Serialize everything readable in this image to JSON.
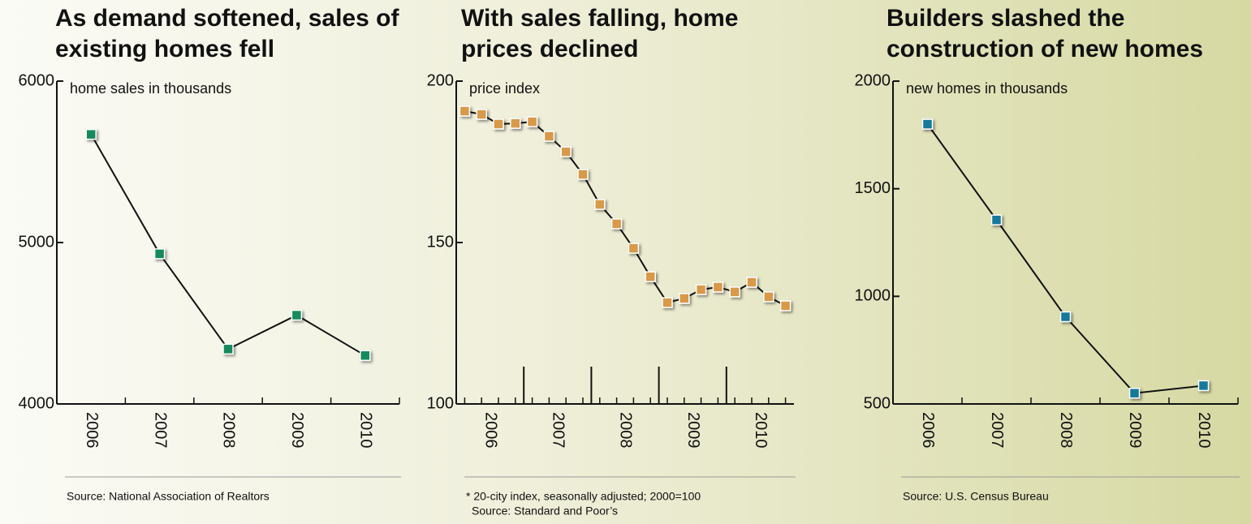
{
  "chart_data": [
    {
      "type": "line",
      "title": "As demand softened, sales of existing homes fell",
      "annotation": "home sales in thousands",
      "categories": [
        "2006",
        "2007",
        "2008",
        "2009",
        "2010"
      ],
      "series": [
        {
          "name": "home sales",
          "color": "#168a5c",
          "values": [
            5670,
            4930,
            4340,
            4550,
            4300
          ]
        }
      ],
      "ylim": [
        4000,
        6000
      ],
      "yticks": [
        4000,
        5000,
        6000
      ],
      "notes": [
        "Source: National Association of Realtors"
      ]
    },
    {
      "type": "line",
      "title": "With sales falling, home prices declined",
      "annotation": "price index",
      "x": [
        2006.125,
        2006.375,
        2006.625,
        2006.875,
        2007.125,
        2007.375,
        2007.625,
        2007.875,
        2008.125,
        2008.375,
        2008.625,
        2008.875,
        2009.125,
        2009.375,
        2009.625,
        2009.875,
        2010.125,
        2010.375,
        2010.625,
        2010.875
      ],
      "series": [
        {
          "name": "price index",
          "color": "#d8994a",
          "values": [
            190.7,
            189.7,
            186.7,
            186.9,
            187.4,
            182.9,
            178.1,
            171.1,
            161.8,
            155.8,
            148.2,
            139.4,
            131.4,
            132.7,
            135.4,
            136.2,
            134.7,
            137.7,
            133.2,
            130.4
          ]
        }
      ],
      "xlim": [
        2006,
        2011
      ],
      "xticks": [
        {
          "value": 2006.5,
          "label": "2006"
        },
        {
          "value": 2007.5,
          "label": "2007"
        },
        {
          "value": 2008.5,
          "label": "2008"
        },
        {
          "value": 2009.5,
          "label": "2009"
        },
        {
          "value": 2010.5,
          "label": "2010"
        }
      ],
      "year_dividers": [
        2007,
        2008,
        2009,
        2010
      ],
      "ylim": [
        100,
        200
      ],
      "yticks": [
        100,
        150,
        200
      ],
      "notes": [
        "* 20-city index, seasonally adjusted; 2000=100",
        "Source: Standard and Poor’s"
      ]
    },
    {
      "type": "line",
      "title": "Builders slashed the construction of new homes",
      "annotation": "new homes in thousands",
      "categories": [
        "2006",
        "2007",
        "2008",
        "2009",
        "2010"
      ],
      "series": [
        {
          "name": "new homes",
          "color": "#17799a",
          "values": [
            1800,
            1355,
            905,
            550,
            585
          ]
        }
      ],
      "ylim": [
        500,
        2000
      ],
      "yticks": [
        500,
        1000,
        1500,
        2000
      ],
      "notes": [
        "Source: U.S. Census Bureau"
      ]
    }
  ]
}
